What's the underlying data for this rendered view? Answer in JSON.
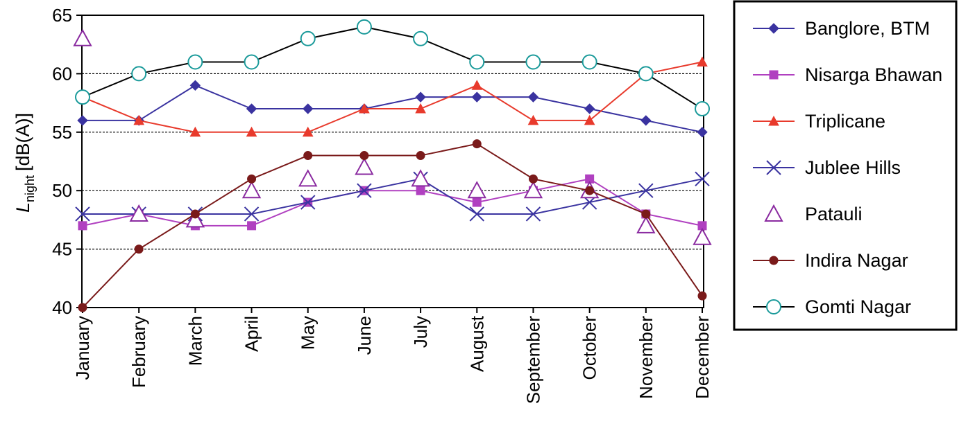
{
  "chart_data": {
    "type": "line",
    "title": "",
    "ylabel": {
      "main": "L",
      "sub": "night",
      "unit": "[dB(A)]"
    },
    "xlabel": "",
    "categories": [
      "January",
      "February",
      "March",
      "April",
      "May",
      "June",
      "July",
      "August",
      "September",
      "October",
      "November",
      "December"
    ],
    "ylim": [
      40,
      65
    ],
    "yticks": [
      40,
      45,
      50,
      55,
      60,
      65
    ],
    "grid": "horizontal dotted at 45, 50, 55, 60",
    "legend_position": "right",
    "series": [
      {
        "name": "Banglore, BTM",
        "color": "#3a33a0",
        "marker": "diamond",
        "line": true,
        "values": [
          56,
          56,
          59,
          57,
          57,
          57,
          58,
          58,
          58,
          57,
          56,
          55
        ]
      },
      {
        "name": "Nisarga Bhawan",
        "color": "#b040c0",
        "marker": "square",
        "line": true,
        "values": [
          47,
          48,
          47,
          47,
          49,
          50,
          50,
          49,
          50,
          51,
          48,
          47
        ]
      },
      {
        "name": "Triplicane",
        "color": "#e83a2c",
        "marker": "triangle",
        "line": true,
        "values": [
          58,
          56,
          55,
          55,
          55,
          57,
          57,
          59,
          56,
          56,
          60,
          61
        ]
      },
      {
        "name": "Jublee Hills",
        "color": "#3a33a0",
        "marker": "x",
        "line": true,
        "values": [
          48,
          48,
          48,
          48,
          49,
          50,
          51,
          48,
          48,
          49,
          50,
          51
        ]
      },
      {
        "name": "Patauli",
        "color": "#8a2aa0",
        "marker": "triangle-open",
        "line": false,
        "values": [
          63,
          48,
          47.5,
          50,
          51,
          52,
          51,
          50,
          50,
          50,
          47,
          46
        ]
      },
      {
        "name": "Indira Nagar",
        "color": "#7a1a1a",
        "marker": "circle",
        "line": true,
        "values": [
          40,
          45,
          48,
          51,
          53,
          53,
          53,
          54,
          51,
          50,
          48,
          41
        ]
      },
      {
        "name": "Gomti Nagar",
        "color": "#1a9a9a",
        "marker": "circle-open",
        "line": true,
        "line_color": "#000000",
        "values": [
          58,
          60,
          61,
          61,
          63,
          64,
          63,
          61,
          61,
          61,
          60,
          57
        ]
      }
    ]
  }
}
